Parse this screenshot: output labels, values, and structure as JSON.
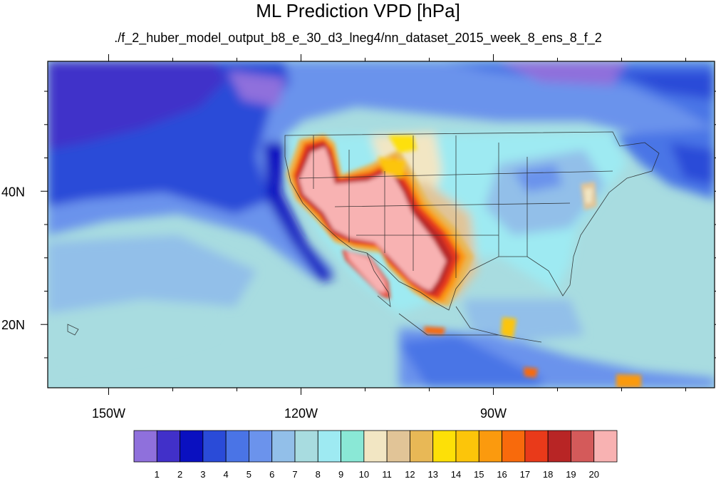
{
  "title": "ML Prediction VPD [hPa]",
  "subtitle": "./f_2_huber_model_output_b8_e_30_d3_lneg4/nn_dataset_2015_week_8_ens_8_f_2",
  "axes": {
    "lon_ticks": [
      {
        "lon": -150,
        "label": "150W"
      },
      {
        "lon": -120,
        "label": "120W"
      },
      {
        "lon": -90,
        "label": "90W"
      }
    ],
    "lat_ticks": [
      {
        "lat": 40,
        "label": "40N"
      },
      {
        "lat": 20,
        "label": "20N"
      }
    ],
    "lon_range": [
      -159.5,
      -55.5
    ],
    "lat_range": [
      10.5,
      59.5
    ]
  },
  "colorbar": {
    "colors": [
      "#8f70dc",
      "#4130c9",
      "#0a10c0",
      "#2a4bd8",
      "#4a74e6",
      "#6b93ec",
      "#92bfe9",
      "#a8dce0",
      "#9eeaf2",
      "#8ae8d6",
      "#f2e6c3",
      "#e1c497",
      "#e8b856",
      "#fde007",
      "#fcc50a",
      "#fb9a0e",
      "#f86a0c",
      "#e93a1a",
      "#b82525",
      "#d45a5a",
      "#f8b2b2"
    ],
    "labels": [
      "1",
      "2",
      "3",
      "4",
      "5",
      "6",
      "7",
      "8",
      "9",
      "10",
      "11",
      "12",
      "13",
      "14",
      "15",
      "16",
      "17",
      "18",
      "19",
      "20"
    ]
  }
}
